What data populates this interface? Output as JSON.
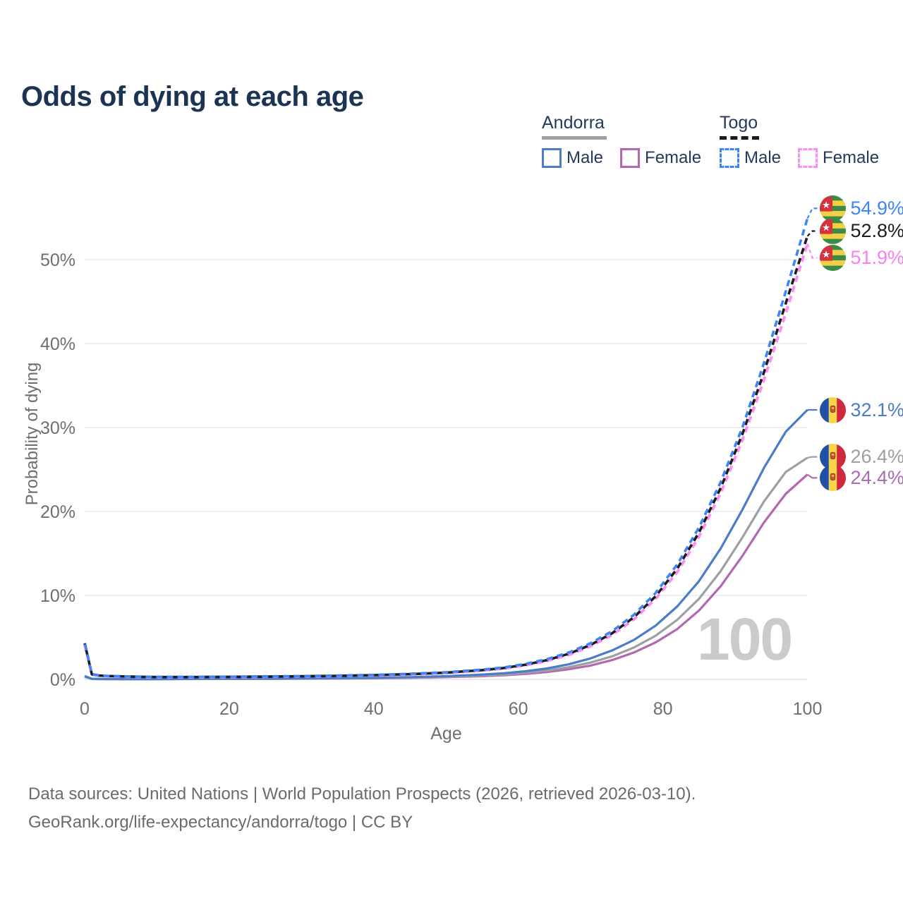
{
  "title": "Odds of dying at each age",
  "legend": {
    "groups": [
      {
        "country": "Andorra",
        "underline_color": "#9e9ea3",
        "underline_style": "solid",
        "items": [
          {
            "label": "Male",
            "color": "#4a7cc7",
            "style": "solid"
          },
          {
            "label": "Female",
            "color": "#b269b2",
            "style": "solid"
          }
        ]
      },
      {
        "country": "Togo",
        "underline_color": "#1c1c1c",
        "underline_style": "dashed",
        "items": [
          {
            "label": "Male",
            "color": "#3d85f7",
            "style": "dashed"
          },
          {
            "label": "Female",
            "color": "#fb8ef5",
            "style": "dashed"
          }
        ]
      }
    ]
  },
  "axes": {
    "x": {
      "label": "Age",
      "ticks": [
        0,
        20,
        40,
        60,
        80,
        100
      ],
      "range": [
        0,
        100
      ]
    },
    "y": {
      "label": "Probability of dying",
      "ticks": [
        "0%",
        "10%",
        "20%",
        "30%",
        "40%",
        "50%"
      ],
      "tick_values": [
        0,
        10,
        20,
        30,
        40,
        50
      ],
      "range_pct": [
        0,
        56
      ]
    }
  },
  "watermark": "100",
  "footer": {
    "line1": "Data sources: United Nations | World Population Prospects (2026, retrieved 2026-03-10).",
    "line2": "GeoRank.org/life-expectancy/andorra/togo | CC BY"
  },
  "chart_data": {
    "type": "line",
    "title": "Odds of dying at each age",
    "xlabel": "Age",
    "ylabel": "Probability of dying",
    "x_range": [
      0,
      100
    ],
    "y_range_pct": [
      0,
      56
    ],
    "grid": "horizontal",
    "legend_position": "top-right",
    "series": [
      {
        "id": "andorra-female",
        "name": "Andorra Female",
        "country": "Andorra",
        "sex": "Female",
        "color": "#b269b2",
        "dash": false,
        "width": 3.2,
        "dash_offset": 0,
        "end_label": "24.4%",
        "end_value_pct": 24.4,
        "label_pct": 24.0,
        "points": [
          [
            0,
            0.3
          ],
          [
            1,
            0.05
          ],
          [
            2,
            0.035
          ],
          [
            3,
            0.025
          ],
          [
            5,
            0.025
          ],
          [
            8,
            0.025
          ],
          [
            10,
            0.025
          ],
          [
            15,
            0.04
          ],
          [
            20,
            0.05
          ],
          [
            25,
            0.06
          ],
          [
            30,
            0.08
          ],
          [
            35,
            0.1
          ],
          [
            40,
            0.13
          ],
          [
            45,
            0.18
          ],
          [
            50,
            0.26
          ],
          [
            55,
            0.38
          ],
          [
            58,
            0.49
          ],
          [
            61,
            0.65
          ],
          [
            64,
            0.88
          ],
          [
            67,
            1.2
          ],
          [
            70,
            1.65
          ],
          [
            73,
            2.3
          ],
          [
            76,
            3.2
          ],
          [
            79,
            4.4
          ],
          [
            82,
            6.0
          ],
          [
            85,
            8.2
          ],
          [
            88,
            11.1
          ],
          [
            91,
            14.7
          ],
          [
            94,
            18.7
          ],
          [
            97,
            22.1
          ],
          [
            100,
            24.4
          ]
        ]
      },
      {
        "id": "andorra-both",
        "name": "Andorra Both sexes",
        "country": "Andorra",
        "sex": "Both",
        "color": "#9e9ea3",
        "dash": false,
        "width": 3.2,
        "dash_offset": 0,
        "end_label": "26.4%",
        "end_value_pct": 26.4,
        "label_pct": 26.5,
        "points": [
          [
            0,
            0.35
          ],
          [
            1,
            0.06
          ],
          [
            2,
            0.04
          ],
          [
            3,
            0.03
          ],
          [
            5,
            0.03
          ],
          [
            8,
            0.03
          ],
          [
            10,
            0.03
          ],
          [
            15,
            0.05
          ],
          [
            20,
            0.07
          ],
          [
            25,
            0.08
          ],
          [
            30,
            0.1
          ],
          [
            35,
            0.12
          ],
          [
            40,
            0.15
          ],
          [
            45,
            0.21
          ],
          [
            50,
            0.3
          ],
          [
            55,
            0.45
          ],
          [
            58,
            0.58
          ],
          [
            61,
            0.78
          ],
          [
            64,
            1.05
          ],
          [
            67,
            1.45
          ],
          [
            70,
            2.0
          ],
          [
            73,
            2.75
          ],
          [
            76,
            3.8
          ],
          [
            79,
            5.2
          ],
          [
            82,
            7.1
          ],
          [
            85,
            9.6
          ],
          [
            88,
            12.9
          ],
          [
            91,
            16.9
          ],
          [
            94,
            21.2
          ],
          [
            97,
            24.7
          ],
          [
            100,
            26.4
          ]
        ]
      },
      {
        "id": "andorra-male",
        "name": "Andorra Male",
        "country": "Andorra",
        "sex": "Male",
        "color": "#4a7cc7",
        "dash": false,
        "width": 3.2,
        "dash_offset": 0,
        "end_label": "32.1%",
        "end_value_pct": 32.1,
        "label_pct": 32.1,
        "points": [
          [
            0,
            0.4
          ],
          [
            1,
            0.07
          ],
          [
            2,
            0.05
          ],
          [
            3,
            0.04
          ],
          [
            5,
            0.035
          ],
          [
            8,
            0.035
          ],
          [
            10,
            0.035
          ],
          [
            15,
            0.06
          ],
          [
            20,
            0.09
          ],
          [
            25,
            0.1
          ],
          [
            30,
            0.12
          ],
          [
            35,
            0.15
          ],
          [
            40,
            0.19
          ],
          [
            45,
            0.27
          ],
          [
            50,
            0.38
          ],
          [
            55,
            0.57
          ],
          [
            58,
            0.73
          ],
          [
            61,
            0.97
          ],
          [
            64,
            1.3
          ],
          [
            67,
            1.8
          ],
          [
            70,
            2.5
          ],
          [
            73,
            3.45
          ],
          [
            76,
            4.7
          ],
          [
            79,
            6.4
          ],
          [
            82,
            8.7
          ],
          [
            85,
            11.7
          ],
          [
            88,
            15.6
          ],
          [
            91,
            20.2
          ],
          [
            94,
            25.2
          ],
          [
            97,
            29.5
          ],
          [
            100,
            32.1
          ]
        ]
      },
      {
        "id": "togo-female",
        "name": "Togo Female",
        "country": "Togo",
        "sex": "Female",
        "color": "#fb8ef5",
        "dash": true,
        "width": 4,
        "dash_offset": 0,
        "end_label": "51.9%",
        "end_value_pct": 51.9,
        "label_pct": 50.2,
        "points": [
          [
            0,
            4.15
          ],
          [
            1,
            0.57
          ],
          [
            2,
            0.43
          ],
          [
            3,
            0.38
          ],
          [
            5,
            0.33
          ],
          [
            8,
            0.28
          ],
          [
            10,
            0.26
          ],
          [
            15,
            0.26
          ],
          [
            20,
            0.28
          ],
          [
            25,
            0.31
          ],
          [
            30,
            0.35
          ],
          [
            35,
            0.4
          ],
          [
            40,
            0.47
          ],
          [
            45,
            0.59
          ],
          [
            50,
            0.76
          ],
          [
            55,
            1.05
          ],
          [
            58,
            1.29
          ],
          [
            61,
            1.67
          ],
          [
            64,
            2.2
          ],
          [
            67,
            2.92
          ],
          [
            70,
            3.95
          ],
          [
            73,
            5.3
          ],
          [
            76,
            7.15
          ],
          [
            79,
            9.6
          ],
          [
            82,
            12.8
          ],
          [
            85,
            17.0
          ],
          [
            88,
            22.2
          ],
          [
            91,
            28.5
          ],
          [
            94,
            35.7
          ],
          [
            97,
            43.6
          ],
          [
            100,
            51.9
          ]
        ]
      },
      {
        "id": "togo-both",
        "name": "Togo Both sexes",
        "country": "Togo",
        "sex": "Both",
        "color": "#1c1c1c",
        "dash": true,
        "width": 3.6,
        "dash_offset": 6,
        "end_label": "52.8%",
        "end_value_pct": 52.8,
        "label_pct": 53.4,
        "points": [
          [
            0,
            4.3
          ],
          [
            1,
            0.6
          ],
          [
            2,
            0.45
          ],
          [
            3,
            0.4
          ],
          [
            5,
            0.35
          ],
          [
            8,
            0.3
          ],
          [
            10,
            0.28
          ],
          [
            15,
            0.28
          ],
          [
            20,
            0.3
          ],
          [
            25,
            0.33
          ],
          [
            30,
            0.37
          ],
          [
            35,
            0.42
          ],
          [
            40,
            0.5
          ],
          [
            45,
            0.62
          ],
          [
            50,
            0.8
          ],
          [
            55,
            1.1
          ],
          [
            58,
            1.35
          ],
          [
            61,
            1.75
          ],
          [
            64,
            2.3
          ],
          [
            67,
            3.05
          ],
          [
            70,
            4.1
          ],
          [
            73,
            5.5
          ],
          [
            76,
            7.4
          ],
          [
            79,
            9.9
          ],
          [
            82,
            13.2
          ],
          [
            85,
            17.5
          ],
          [
            88,
            22.8
          ],
          [
            91,
            29.2
          ],
          [
            94,
            36.6
          ],
          [
            97,
            44.8
          ],
          [
            100,
            52.8
          ]
        ]
      },
      {
        "id": "togo-male",
        "name": "Togo Male",
        "country": "Togo",
        "sex": "Male",
        "color": "#3d85f7",
        "dash": true,
        "width": 3.6,
        "dash_offset": 12,
        "end_label": "54.9%",
        "end_value_pct": 54.9,
        "label_pct": 56.1,
        "points": [
          [
            0,
            4.45
          ],
          [
            1,
            0.63
          ],
          [
            2,
            0.47
          ],
          [
            3,
            0.42
          ],
          [
            5,
            0.37
          ],
          [
            8,
            0.32
          ],
          [
            10,
            0.3
          ],
          [
            15,
            0.3
          ],
          [
            20,
            0.32
          ],
          [
            25,
            0.35
          ],
          [
            30,
            0.39
          ],
          [
            35,
            0.45
          ],
          [
            40,
            0.53
          ],
          [
            45,
            0.66
          ],
          [
            50,
            0.85
          ],
          [
            55,
            1.16
          ],
          [
            58,
            1.42
          ],
          [
            61,
            1.84
          ],
          [
            64,
            2.42
          ],
          [
            67,
            3.2
          ],
          [
            70,
            4.3
          ],
          [
            73,
            5.75
          ],
          [
            76,
            7.7
          ],
          [
            79,
            10.3
          ],
          [
            82,
            13.7
          ],
          [
            85,
            18.1
          ],
          [
            88,
            23.5
          ],
          [
            91,
            30.0
          ],
          [
            94,
            37.7
          ],
          [
            97,
            46.2
          ],
          [
            100,
            54.9
          ]
        ]
      }
    ],
    "end_labels": [
      {
        "text": "54.9%",
        "color": "#3d85f7",
        "flag": "togo",
        "label_pct": 56.1,
        "series": "Togo Male"
      },
      {
        "text": "52.8%",
        "color": "#1c1c1c",
        "flag": "togo",
        "label_pct": 53.4,
        "series": "Togo Both sexes"
      },
      {
        "text": "51.9%",
        "color": "#f980f0",
        "flag": "togo",
        "label_pct": 50.2,
        "series": "Togo Female"
      },
      {
        "text": "32.1%",
        "color": "#4a7cc7",
        "flag": "andorra",
        "label_pct": 32.1,
        "series": "Andorra Male"
      },
      {
        "text": "26.4%",
        "color": "#9e9ea3",
        "flag": "andorra",
        "label_pct": 26.5,
        "series": "Andorra Both sexes"
      },
      {
        "text": "24.4%",
        "color": "#a96cb3",
        "flag": "andorra",
        "label_pct": 24.0,
        "series": "Andorra Female"
      }
    ]
  }
}
